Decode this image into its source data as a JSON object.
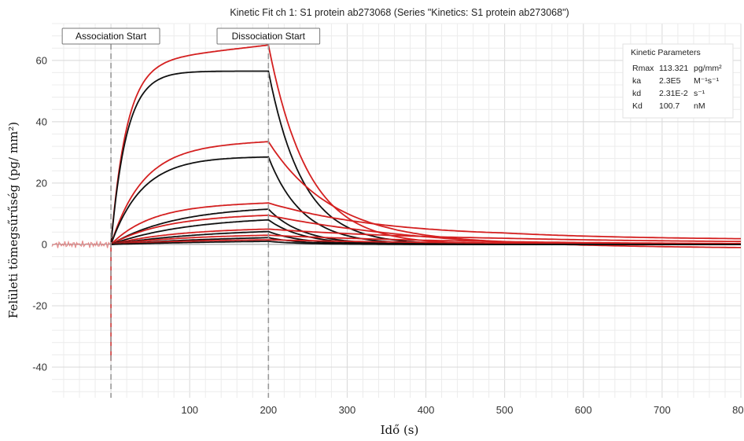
{
  "chart_data": {
    "type": "line",
    "title": "Kinetic Fit ch 1: S1 protein ab273068 (Series \"Kinetics: S1 protein ab273068\")",
    "xlabel": "Idő (s)",
    "ylabel": "Felületi tömegsűrűség (pg/ mm²)",
    "xlim": [
      -75,
      800
    ],
    "ylim": [
      -50,
      72
    ],
    "xticks": [
      100,
      200,
      300,
      400,
      500,
      600,
      700,
      800
    ],
    "yticks": [
      -40,
      -20,
      0,
      20,
      40,
      60
    ],
    "grid": true,
    "markers": [
      {
        "x": 0,
        "label": "Association Start"
      },
      {
        "x": 200,
        "label": "Dissociation Start"
      }
    ],
    "kinetic_parameters": {
      "title": "Kinetic Parameters",
      "rows": [
        {
          "name": "Rmax",
          "value": "113.321",
          "unit": "pg/mm²"
        },
        {
          "name": "ka",
          "value": "2.3E5",
          "unit": "M⁻¹s⁻¹"
        },
        {
          "name": "kd",
          "value": "2.31E-2",
          "unit": "s⁻¹"
        },
        {
          "name": "Kd",
          "value": "100.7",
          "unit": "nM"
        }
      ]
    },
    "colors": {
      "measured": "#d42020",
      "fit": "#111111",
      "marker_line": "#999999"
    },
    "series": [
      {
        "role": "measured",
        "plateau": 65.0,
        "assoc_rate": 0.05,
        "assoc_drift": 0.05,
        "diss_rate": 0.02,
        "diss_offset": 0
      },
      {
        "role": "fit",
        "plateau": 56.5,
        "assoc_rate": 0.05,
        "assoc_drift": 0,
        "diss_rate": 0.023,
        "diss_offset": 0
      },
      {
        "role": "measured",
        "plateau": 33.5,
        "assoc_rate": 0.025,
        "assoc_drift": 0.03,
        "diss_rate": 0.012,
        "diss_offset": 0
      },
      {
        "role": "fit",
        "plateau": 28.5,
        "assoc_rate": 0.025,
        "assoc_drift": 0,
        "diss_rate": 0.023,
        "diss_offset": 0
      },
      {
        "role": "measured",
        "plateau": 13.5,
        "assoc_rate": 0.02,
        "assoc_drift": 0.04,
        "diss_rate": 0.006,
        "diss_offset": 1.5
      },
      {
        "role": "fit",
        "plateau": 11.5,
        "assoc_rate": 0.012,
        "assoc_drift": 0,
        "diss_rate": 0.023,
        "diss_offset": 0
      },
      {
        "role": "measured",
        "plateau": 9.5,
        "assoc_rate": 0.015,
        "assoc_drift": 0.03,
        "diss_rate": 0.005,
        "diss_offset": -1.5
      },
      {
        "role": "fit",
        "plateau": 8.0,
        "assoc_rate": 0.01,
        "assoc_drift": 0,
        "diss_rate": 0.023,
        "diss_offset": 0
      },
      {
        "role": "measured",
        "plateau": 5.0,
        "assoc_rate": 0.012,
        "assoc_drift": 0.02,
        "diss_rate": 0.004,
        "diss_offset": 0.5
      },
      {
        "role": "fit",
        "plateau": 4.2,
        "assoc_rate": 0.008,
        "assoc_drift": 0,
        "diss_rate": 0.023,
        "diss_offset": 0
      },
      {
        "role": "measured",
        "plateau": 3.0,
        "assoc_rate": 0.01,
        "assoc_drift": 0.02,
        "diss_rate": 0.004,
        "diss_offset": 0
      },
      {
        "role": "fit",
        "plateau": 2.2,
        "assoc_rate": 0.006,
        "assoc_drift": 0,
        "diss_rate": 0.023,
        "diss_offset": 0
      },
      {
        "role": "measured",
        "plateau": 1.5,
        "assoc_rate": 0.01,
        "assoc_drift": 0.02,
        "diss_rate": 0.004,
        "diss_offset": 0
      },
      {
        "role": "fit",
        "plateau": 1.0,
        "assoc_rate": 0.005,
        "assoc_drift": 0,
        "diss_rate": 0.023,
        "diss_offset": 0
      }
    ]
  }
}
